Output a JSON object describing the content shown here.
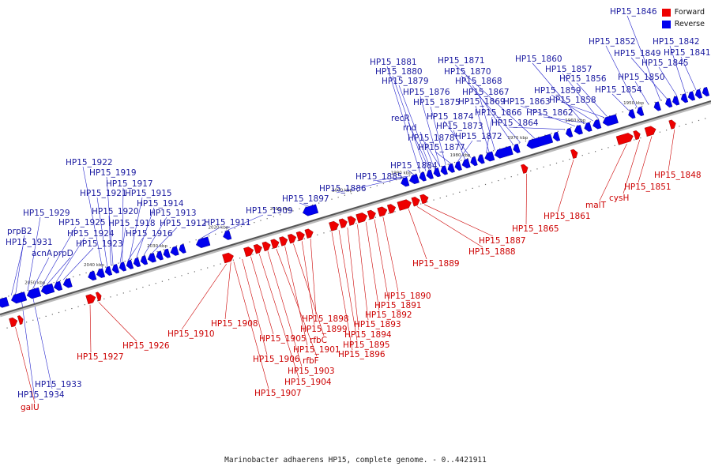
{
  "title": "Marinobacter adhaerens HP15, complete genome. - 0..4421911",
  "legend": [
    {
      "label": "Forward",
      "color": "#ee0000"
    },
    {
      "label": "Reverse",
      "color": "#0000ee"
    }
  ],
  "ticks": [
    {
      "label": "1950 kbp",
      "t": 0.9
    },
    {
      "label": "1960 kbp",
      "t": 0.818
    },
    {
      "label": "1970 kbp",
      "t": 0.737
    },
    {
      "label": "1980 kbp",
      "t": 0.656
    },
    {
      "label": "1990 kbp",
      "t": 0.573
    },
    {
      "label": "2000 kbp",
      "t": 0.49
    },
    {
      "label": "2010 kbp",
      "t": 0.403
    },
    {
      "label": "2020 kbp",
      "t": 0.316
    },
    {
      "label": "2030 kbp",
      "t": 0.23
    },
    {
      "label": "2040 kbp",
      "t": 0.141
    },
    {
      "label": "2050 kbp",
      "t": 0.058
    }
  ],
  "reverse_labels": [
    "HP15_1846",
    "HP15_1852",
    "HP15_1849",
    "HP15_1842",
    "HP15_1841",
    "HP15_1845",
    "HP15_1860",
    "HP15_1857",
    "HP15_1856",
    "HP15_1850",
    "HP15_1859",
    "HP15_1854",
    "HP15_1858",
    "HP15_1863",
    "HP15_1862",
    "HP15_1864",
    "HP15_1871",
    "HP15_1870",
    "HP15_1868",
    "HP15_1867",
    "HP15_1869",
    "HP15_1866",
    "HP15_1874",
    "HP15_1873",
    "HP15_1872",
    "HP15_1881",
    "HP15_1880",
    "HP15_1879",
    "HP15_1876",
    "HP15_1875",
    "recR",
    "rnd",
    "HP15_1878",
    "HP15_1877",
    "HP15_1884",
    "HP15_1885",
    "HP15_1886",
    "HP15_1897",
    "HP15_1909",
    "HP15_1911",
    "HP15_1922",
    "HP15_1919",
    "HP15_1917",
    "HP15_1921",
    "HP15_1915",
    "HP15_1920",
    "HP15_1914",
    "HP15_1918",
    "HP15_1913",
    "HP15_1916",
    "HP15_1912",
    "HP15_1929",
    "HP15_1925",
    "prpB2",
    "HP15_1924",
    "HP15_1931",
    "HP15_1923",
    "acnA",
    "prpD",
    "HP15_1933",
    "HP15_1934"
  ],
  "forward_labels": [
    "HP15_1848",
    "HP15_1851",
    "cysH",
    "malT",
    "HP15_1861",
    "HP15_1865",
    "HP15_1887",
    "HP15_1888",
    "HP15_1889",
    "HP15_1890",
    "HP15_1891",
    "HP15_1892",
    "HP15_1893",
    "HP15_1894",
    "HP15_1895",
    "HP15_1896",
    "HP15_1898",
    "HP15_1899",
    "rfbC",
    "HP15_1901",
    "rfbF",
    "HP15_1903",
    "HP15_1904",
    "HP15_1905",
    "HP15_1906",
    "HP15_1907",
    "HP15_1908",
    "HP15_1910",
    "HP15_1926",
    "HP15_1927",
    "galU"
  ]
}
